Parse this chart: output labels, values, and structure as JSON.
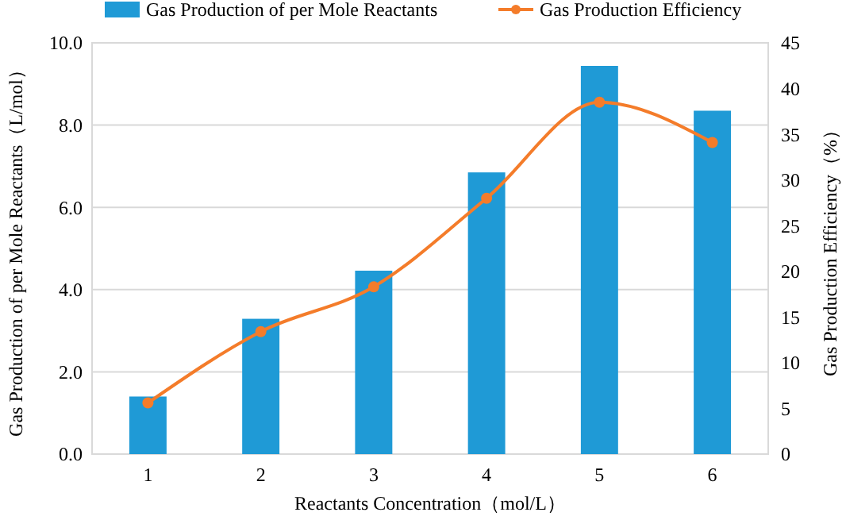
{
  "chart_data": {
    "type": "bar",
    "xlabel": "Reactants Concentration（mol/L）",
    "ylabel": "Gas Production of per Mole Reactants（L/mol）",
    "y2label": "Gas Production Efficiency（%）",
    "categories": [
      "1",
      "2",
      "3",
      "4",
      "5",
      "6"
    ],
    "series": [
      {
        "name": "Gas Production of per Mole Reactants",
        "color": "#1f9ad6",
        "values": [
          1.4,
          3.29,
          4.46,
          6.85,
          9.44,
          8.35
        ]
      },
      {
        "name": "Gas Production Efficiency",
        "type": "line",
        "axis": "y2",
        "color": "#f47c2a",
        "marker": "circle",
        "values": [
          5.6,
          13.4,
          18.3,
          28.0,
          38.5,
          34.1
        ]
      }
    ],
    "ylim": [
      0,
      10
    ],
    "yticks": [
      {
        "value": 0,
        "label": "0.0"
      },
      {
        "value": 2,
        "label": "2.0"
      },
      {
        "value": 4,
        "label": "4.0"
      },
      {
        "value": 6,
        "label": "6.0"
      },
      {
        "value": 8,
        "label": "8.0"
      },
      {
        "value": 10,
        "label": "10.0"
      }
    ],
    "y2lim": [
      0,
      45
    ],
    "y2ticks": [
      0,
      5,
      10,
      15,
      20,
      25,
      30,
      35,
      40,
      45
    ],
    "grid": "y",
    "legend": "top"
  }
}
